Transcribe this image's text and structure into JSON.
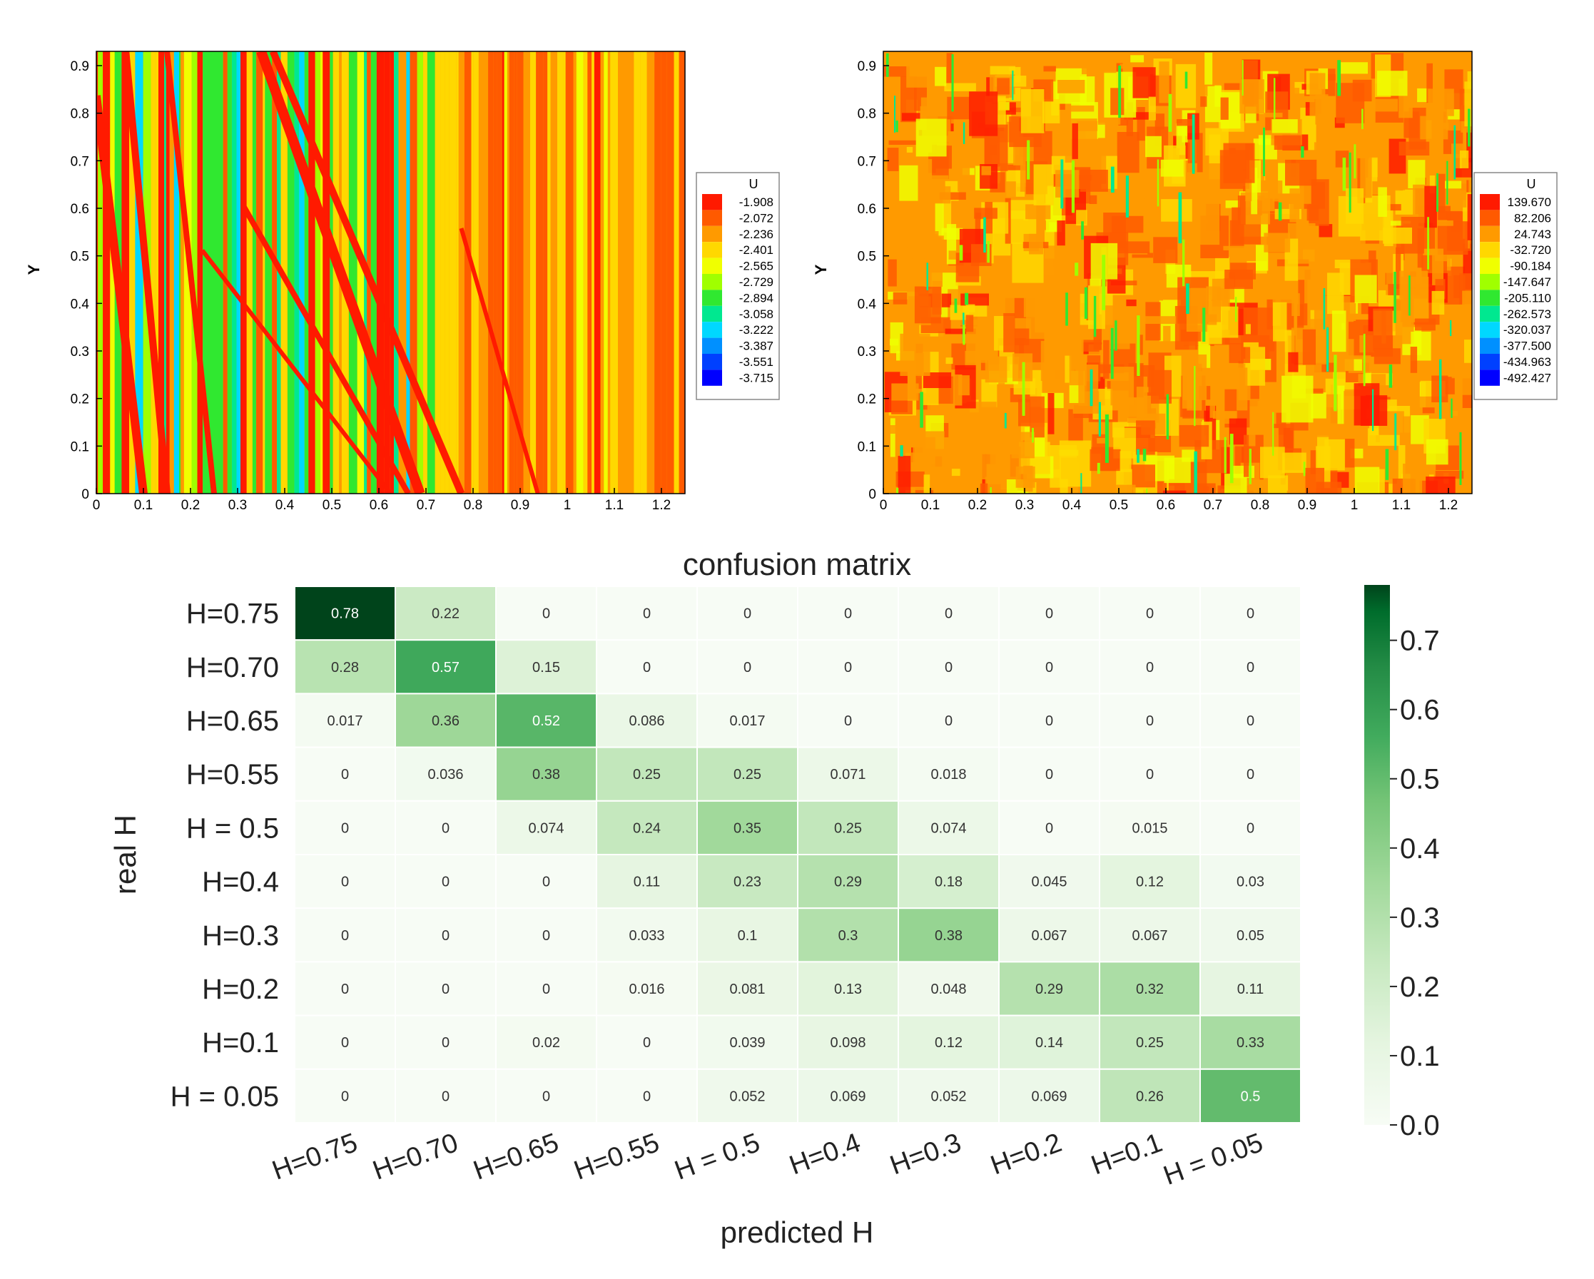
{
  "contour_plots": [
    {
      "ylabel": "Y",
      "x_ticks": [
        "0",
        "0.1",
        "0.2",
        "0.3",
        "0.4",
        "0.5",
        "0.6",
        "0.7",
        "0.8",
        "0.9",
        "1",
        "1.1",
        "1.2"
      ],
      "y_ticks": [
        "0",
        "0.1",
        "0.2",
        "0.3",
        "0.4",
        "0.5",
        "0.6",
        "0.7",
        "0.8",
        "0.9"
      ],
      "xlim": [
        0,
        1.25
      ],
      "ylim": [
        0,
        0.93
      ],
      "legend": {
        "title": "U",
        "levels": [
          "-1.908",
          "-2.072",
          "-2.236",
          "-2.401",
          "-2.565",
          "-2.729",
          "-2.894",
          "-3.058",
          "-3.222",
          "-3.387",
          "-3.551",
          "-3.715"
        ],
        "colors": [
          "#ff1a00",
          "#ff5a00",
          "#ff9a00",
          "#ffd800",
          "#f0ff00",
          "#a0ff00",
          "#30e830",
          "#00e890",
          "#00d8ff",
          "#0090ff",
          "#0040ff",
          "#0000ff"
        ]
      },
      "texture": "left"
    },
    {
      "ylabel": "Y",
      "x_ticks": [
        "0",
        "0.1",
        "0.2",
        "0.3",
        "0.4",
        "0.5",
        "0.6",
        "0.7",
        "0.8",
        "0.9",
        "1",
        "1.1",
        "1.2"
      ],
      "y_ticks": [
        "0",
        "0.1",
        "0.2",
        "0.3",
        "0.4",
        "0.5",
        "0.6",
        "0.7",
        "0.8",
        "0.9"
      ],
      "xlim": [
        0,
        1.25
      ],
      "ylim": [
        0,
        0.93
      ],
      "legend": {
        "title": "U",
        "levels": [
          "139.670",
          "82.206",
          "24.743",
          "-32.720",
          "-90.184",
          "-147.647",
          "-205.110",
          "-262.573",
          "-320.037",
          "-377.500",
          "-434.963",
          "-492.427"
        ],
        "colors": [
          "#ff1a00",
          "#ff5a00",
          "#ff9a00",
          "#ffd800",
          "#f0ff00",
          "#a0ff00",
          "#30e830",
          "#00e890",
          "#00d8ff",
          "#0090ff",
          "#0040ff",
          "#0000ff"
        ]
      },
      "texture": "right"
    }
  ],
  "chart_data": {
    "type": "heatmap",
    "title": "confusion matrix",
    "xlabel": "predicted H",
    "ylabel": "real H",
    "row_labels": [
      "H=0.75",
      "H=0.70",
      "H=0.65",
      "H=0.55",
      "H = 0.5",
      "H=0.4",
      "H=0.3",
      "H=0.2",
      "H=0.1",
      "H = 0.05"
    ],
    "col_labels": [
      "H=0.75",
      "H=0.70",
      "H=0.65",
      "H=0.55",
      "H = 0.5",
      "H=0.4",
      "H=0.3",
      "H=0.2",
      "H=0.1",
      "H = 0.05"
    ],
    "values": [
      [
        "0.78",
        "0.22",
        "0",
        "0",
        "0",
        "0",
        "0",
        "0",
        "0",
        "0"
      ],
      [
        "0.28",
        "0.57",
        "0.15",
        "0",
        "0",
        "0",
        "0",
        "0",
        "0",
        "0"
      ],
      [
        "0.017",
        "0.36",
        "0.52",
        "0.086",
        "0.017",
        "0",
        "0",
        "0",
        "0",
        "0"
      ],
      [
        "0",
        "0.036",
        "0.38",
        "0.25",
        "0.25",
        "0.071",
        "0.018",
        "0",
        "0",
        "0"
      ],
      [
        "0",
        "0",
        "0.074",
        "0.24",
        "0.35",
        "0.25",
        "0.074",
        "0",
        "0.015",
        "0"
      ],
      [
        "0",
        "0",
        "0",
        "0.11",
        "0.23",
        "0.29",
        "0.18",
        "0.045",
        "0.12",
        "0.03"
      ],
      [
        "0",
        "0",
        "0",
        "0.033",
        "0.1",
        "0.3",
        "0.38",
        "0.067",
        "0.067",
        "0.05"
      ],
      [
        "0",
        "0",
        "0",
        "0.016",
        "0.081",
        "0.13",
        "0.048",
        "0.29",
        "0.32",
        "0.11"
      ],
      [
        "0",
        "0",
        "0.02",
        "0",
        "0.039",
        "0.098",
        "0.12",
        "0.14",
        "0.25",
        "0.33"
      ],
      [
        "0",
        "0",
        "0",
        "0",
        "0.052",
        "0.069",
        "0.052",
        "0.069",
        "0.26",
        "0.5"
      ]
    ],
    "vmin": 0,
    "vmax": 0.78,
    "colorbar_ticks": [
      "0.0",
      "0.1",
      "0.2",
      "0.3",
      "0.4",
      "0.5",
      "0.6",
      "0.7"
    ],
    "colormap": "Greens"
  }
}
